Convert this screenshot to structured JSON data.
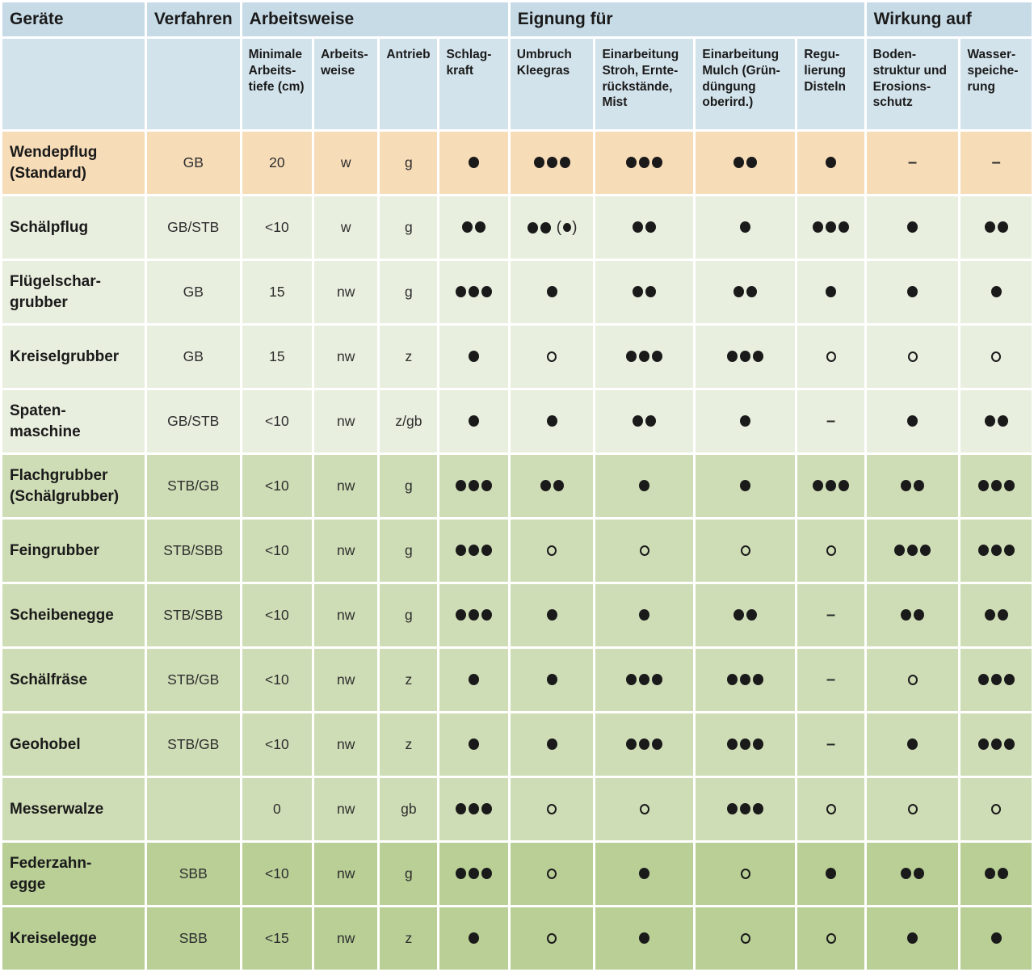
{
  "chart_data": {
    "type": "table",
    "group_columns": [
      {
        "label": "Geräte",
        "colspan": 1
      },
      {
        "label": "Verfahren",
        "colspan": 1
      },
      {
        "label": "Arbeitsweise",
        "colspan": 4
      },
      {
        "label": "Eignung für",
        "colspan": 4
      },
      {
        "label": "Wirkung auf",
        "colspan": 2
      }
    ],
    "sub_headers": [
      "",
      "",
      "Minimale\nArbeits-\ntiefe (cm)",
      "Arbeits-\nweise",
      "Antrieb",
      "Schlag-\nkraft",
      "Umbruch\nKleegras",
      "Einarbeitung\nStroh, Ernte-\nrückstände,\nMist",
      "Einarbeitung\nMulch (Grün-\ndüngung\noberird.)",
      "Regu-\nlierung\nDisteln",
      "Boden-\nstruktur und\nErosions-\nschutz",
      "Wasser-\nspeiche-\nrung"
    ],
    "column_keys": [
      "geraet",
      "verfahren",
      "min_tiefe",
      "arbeitsweise",
      "antrieb",
      "schlagkraft",
      "umbruch_kleegras",
      "einarbeitung_stroh",
      "einarbeitung_mulch",
      "regulierung_disteln",
      "bodenstruktur",
      "wasserspeicherung"
    ],
    "rows": [
      {
        "geraet": "Wendepflug\n(Standard)",
        "verfahren": "GB",
        "min_tiefe": "20",
        "arbeitsweise": "w",
        "antrieb": "g",
        "schlagkraft": "●",
        "umbruch_kleegras": "●●●",
        "einarbeitung_stroh": "●●●",
        "einarbeitung_mulch": "●●",
        "regulierung_disteln": "●",
        "bodenstruktur": "–",
        "wasserspeicherung": "–",
        "row_color": "orange"
      },
      {
        "geraet": "Schälpflug",
        "verfahren": "GB/STB",
        "min_tiefe": "<10",
        "arbeitsweise": "w",
        "antrieb": "g",
        "schlagkraft": "●●",
        "umbruch_kleegras": "●● (●)",
        "einarbeitung_stroh": "●●",
        "einarbeitung_mulch": "●",
        "regulierung_disteln": "●●●",
        "bodenstruktur": "●",
        "wasserspeicherung": "●●",
        "row_color": "light"
      },
      {
        "geraet": "Flügelschar-\ngrubber",
        "verfahren": "GB",
        "min_tiefe": "15",
        "arbeitsweise": "nw",
        "antrieb": "g",
        "schlagkraft": "●●●",
        "umbruch_kleegras": "●",
        "einarbeitung_stroh": "●●",
        "einarbeitung_mulch": "●●",
        "regulierung_disteln": "●",
        "bodenstruktur": "●",
        "wasserspeicherung": "●",
        "row_color": "light"
      },
      {
        "geraet": "Kreiselgrubber",
        "verfahren": "GB",
        "min_tiefe": "15",
        "arbeitsweise": "nw",
        "antrieb": "z",
        "schlagkraft": "●",
        "umbruch_kleegras": "○",
        "einarbeitung_stroh": "●●●",
        "einarbeitung_mulch": "●●●",
        "regulierung_disteln": "○",
        "bodenstruktur": "○",
        "wasserspeicherung": "○",
        "row_color": "light"
      },
      {
        "geraet": "Spaten-\nmaschine",
        "verfahren": "GB/STB",
        "min_tiefe": "<10",
        "arbeitsweise": "nw",
        "antrieb": "z/gb",
        "schlagkraft": "●",
        "umbruch_kleegras": "●",
        "einarbeitung_stroh": "●●",
        "einarbeitung_mulch": "●",
        "regulierung_disteln": "–",
        "bodenstruktur": "●",
        "wasserspeicherung": "●●",
        "row_color": "light"
      },
      {
        "geraet": "Flachgrubber\n(Schälgrubber)",
        "verfahren": "STB/GB",
        "min_tiefe": "<10",
        "arbeitsweise": "nw",
        "antrieb": "g",
        "schlagkraft": "●●●",
        "umbruch_kleegras": "●●",
        "einarbeitung_stroh": "●",
        "einarbeitung_mulch": "●",
        "regulierung_disteln": "●●●",
        "bodenstruktur": "●●",
        "wasserspeicherung": "●●●",
        "row_color": "mid"
      },
      {
        "geraet": "Feingrubber",
        "verfahren": "STB/SBB",
        "min_tiefe": "<10",
        "arbeitsweise": "nw",
        "antrieb": "g",
        "schlagkraft": "●●●",
        "umbruch_kleegras": "○",
        "einarbeitung_stroh": "○",
        "einarbeitung_mulch": "○",
        "regulierung_disteln": "○",
        "bodenstruktur": "●●●",
        "wasserspeicherung": "●●●",
        "row_color": "mid"
      },
      {
        "geraet": "Scheibenegge",
        "verfahren": "STB/SBB",
        "min_tiefe": "<10",
        "arbeitsweise": "nw",
        "antrieb": "g",
        "schlagkraft": "●●●",
        "umbruch_kleegras": "●",
        "einarbeitung_stroh": "●",
        "einarbeitung_mulch": "●●",
        "regulierung_disteln": "–",
        "bodenstruktur": "●●",
        "wasserspeicherung": "●●",
        "row_color": "mid"
      },
      {
        "geraet": "Schälfräse",
        "verfahren": "STB/GB",
        "min_tiefe": "<10",
        "arbeitsweise": "nw",
        "antrieb": "z",
        "schlagkraft": "●",
        "umbruch_kleegras": "●",
        "einarbeitung_stroh": "●●●",
        "einarbeitung_mulch": "●●●",
        "regulierung_disteln": "–",
        "bodenstruktur": "○",
        "wasserspeicherung": "●●●",
        "row_color": "mid"
      },
      {
        "geraet": "Geohobel",
        "verfahren": "STB/GB",
        "min_tiefe": "<10",
        "arbeitsweise": "nw",
        "antrieb": "z",
        "schlagkraft": "●",
        "umbruch_kleegras": "●",
        "einarbeitung_stroh": "●●●",
        "einarbeitung_mulch": "●●●",
        "regulierung_disteln": "–",
        "bodenstruktur": "●",
        "wasserspeicherung": "●●●",
        "row_color": "mid"
      },
      {
        "geraet": "Messerwalze",
        "verfahren": "",
        "min_tiefe": "0",
        "arbeitsweise": "nw",
        "antrieb": "gb",
        "schlagkraft": "●●●",
        "umbruch_kleegras": "○",
        "einarbeitung_stroh": "○",
        "einarbeitung_mulch": "●●●",
        "regulierung_disteln": "○",
        "bodenstruktur": "○",
        "wasserspeicherung": "○",
        "row_color": "mid"
      },
      {
        "geraet": "Federzahn-\negge",
        "verfahren": "SBB",
        "min_tiefe": "<10",
        "arbeitsweise": "nw",
        "antrieb": "g",
        "schlagkraft": "●●●",
        "umbruch_kleegras": "○",
        "einarbeitung_stroh": "●",
        "einarbeitung_mulch": "○",
        "regulierung_disteln": "●",
        "bodenstruktur": "●●",
        "wasserspeicherung": "●●",
        "row_color": "dark"
      },
      {
        "geraet": "Kreiselegge",
        "verfahren": "SBB",
        "min_tiefe": "<15",
        "arbeitsweise": "nw",
        "antrieb": "z",
        "schlagkraft": "●",
        "umbruch_kleegras": "○",
        "einarbeitung_stroh": "●",
        "einarbeitung_mulch": "○",
        "regulierung_disteln": "○",
        "bodenstruktur": "●",
        "wasserspeicherung": "●",
        "row_color": "dark"
      }
    ],
    "symbols": {
      "filled_dot": "●",
      "open_circle": "○",
      "none": "–"
    },
    "colors": {
      "header_group_bg": "#c7dbe7",
      "header_sub_bg": "#d3e3ec",
      "row_orange": "#f7dcb8",
      "row_light_green": "#e9efdf",
      "row_medium_green": "#cfddb6",
      "row_dark_green": "#b9cf96",
      "symbol_color": "#1a1a1a",
      "grid_gap": "#ffffff"
    }
  }
}
